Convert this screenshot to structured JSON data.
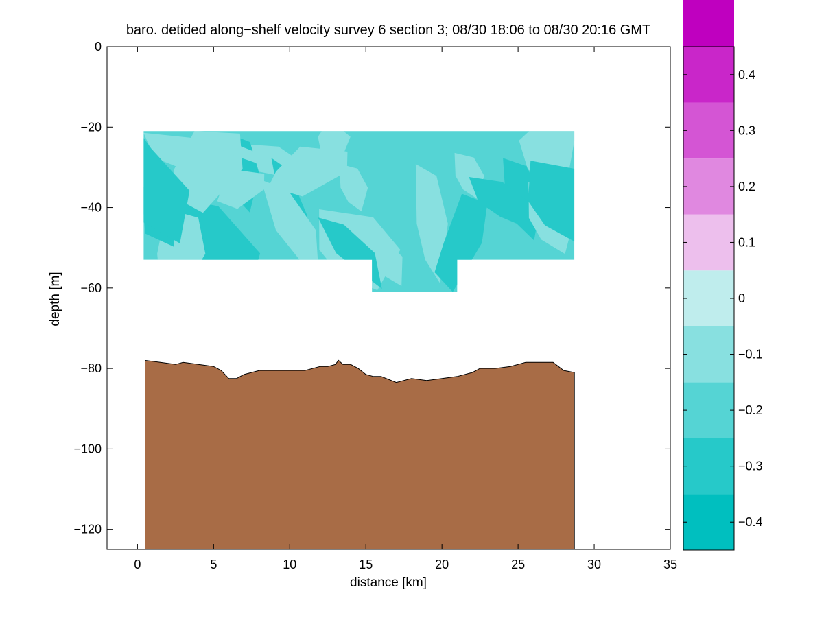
{
  "chart_data": {
    "type": "contour",
    "title": "baro. detided along−shelf velocity survey 6 section 3; 08/30 18:06 to 08/30 20:16 GMT",
    "xlabel": "distance [km]",
    "ylabel": "depth [m]",
    "xlim": [
      -2,
      35
    ],
    "ylim": [
      -125,
      0
    ],
    "xticks": [
      0,
      5,
      10,
      15,
      20,
      25,
      30,
      35
    ],
    "yticks": [
      0,
      -20,
      -40,
      -60,
      -80,
      -100,
      -120
    ],
    "colorbar": {
      "levels": [
        -0.45,
        -0.4,
        -0.35,
        -0.3,
        -0.25,
        -0.2,
        -0.15,
        -0.1,
        -0.05,
        0,
        0.05,
        0.1,
        0.15,
        0.2,
        0.25,
        0.3,
        0.35,
        0.4,
        0.45
      ],
      "ticks": [
        -0.4,
        -0.3,
        -0.2,
        -0.1,
        0,
        0.1,
        0.2,
        0.3,
        0.4
      ],
      "band_colors": [
        "#00bfbf",
        "#26c9c9",
        "#55d4d4",
        "#88e0e0",
        "#bfeded",
        "#edbfed",
        "#e088e0",
        "#d455d4",
        "#c926c9",
        "#bf00bf"
      ]
    },
    "data_region": {
      "x_range_main": [
        0.4,
        28.7
      ],
      "depth_range_main": [
        -21,
        -53
      ],
      "x_range_extension": [
        15.4,
        21.0
      ],
      "depth_extension_bottom": -61
    },
    "bottom_color": "#a86c46",
    "bottom_profile": {
      "x": [
        0.5,
        1.5,
        2.5,
        3.0,
        4.0,
        5.0,
        5.5,
        6.0,
        6.5,
        7.0,
        8.0,
        9.0,
        10.0,
        11.0,
        12.0,
        12.5,
        13.0,
        13.2,
        13.5,
        14.0,
        14.5,
        15.0,
        15.5,
        16.0,
        17.0,
        18.0,
        19.0,
        20.0,
        21.0,
        22.0,
        22.5,
        23.5,
        24.5,
        25.5,
        26.5,
        27.3,
        28.0,
        28.7
      ],
      "depth": [
        -78,
        -78.5,
        -79,
        -78.5,
        -79,
        -79.5,
        -80.5,
        -82.5,
        -82.5,
        -81.5,
        -80.5,
        -80.5,
        -80.5,
        -80.5,
        -79.5,
        -79.5,
        -79,
        -78,
        -79,
        -79,
        -80,
        -81.5,
        -82,
        -82,
        -83.5,
        -82.5,
        -83,
        -82.5,
        -82,
        -81,
        -80,
        -80,
        -79.5,
        -78.5,
        -78.5,
        -78.5,
        -80.5,
        -81
      ]
    },
    "dominant_velocity": -0.25
  }
}
